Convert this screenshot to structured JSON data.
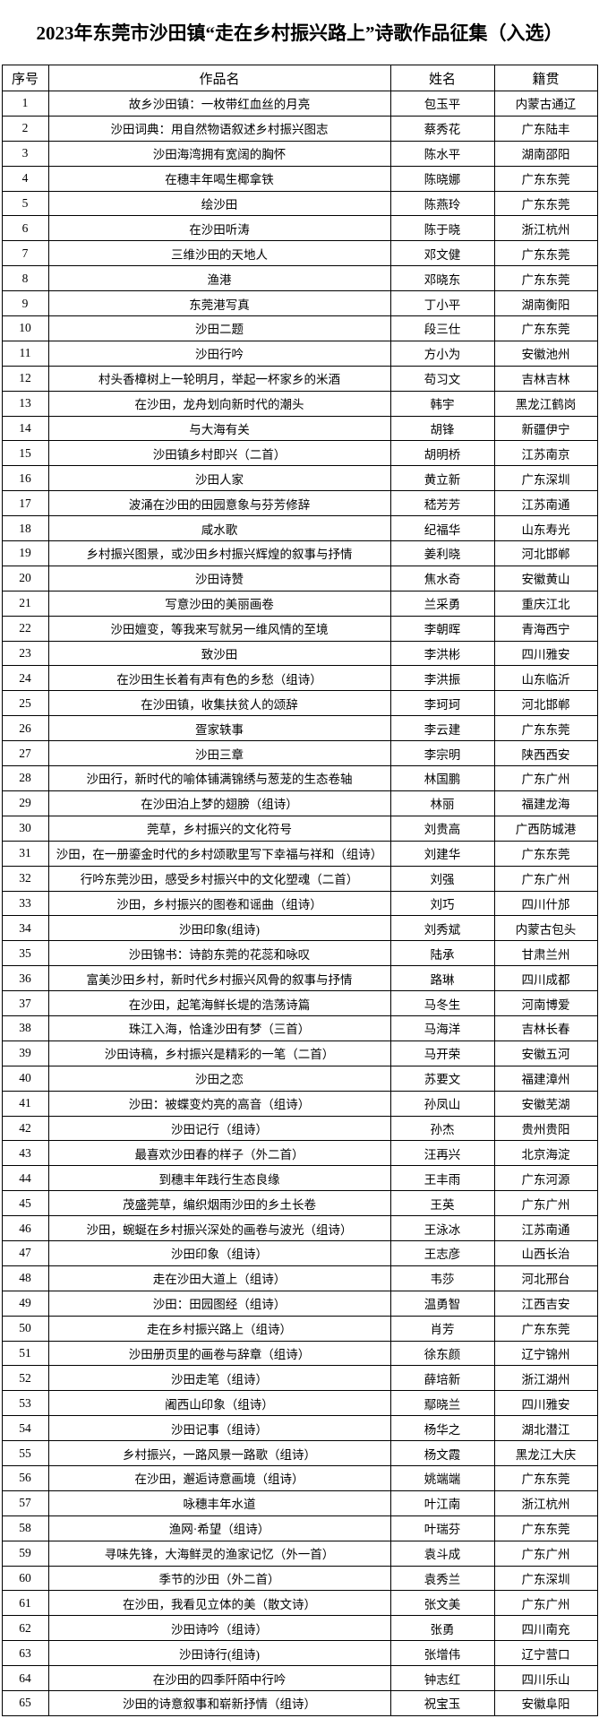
{
  "page": {
    "title": "2023年东莞市沙田镇“走在乡村振兴路上”诗歌作品征集（入选）"
  },
  "table": {
    "headers": [
      "序号",
      "作品名",
      "姓名",
      "籍贯"
    ],
    "rows": [
      {
        "no": "1",
        "title": "故乡沙田镇：一枚带红血丝的月亮",
        "name": "包玉平",
        "origin": "内蒙古通辽"
      },
      {
        "no": "2",
        "title": "沙田词典：用自然物语叙述乡村振兴图志",
        "name": "蔡秀花",
        "origin": "广东陆丰"
      },
      {
        "no": "3",
        "title": "沙田海湾拥有宽阔的胸怀",
        "name": "陈水平",
        "origin": "湖南邵阳"
      },
      {
        "no": "4",
        "title": "在穗丰年喝生椰拿铁",
        "name": "陈晓娜",
        "origin": "广东东莞"
      },
      {
        "no": "5",
        "title": "绘沙田",
        "name": "陈燕玲",
        "origin": "广东东莞"
      },
      {
        "no": "6",
        "title": "在沙田听涛",
        "name": "陈于晓",
        "origin": "浙江杭州"
      },
      {
        "no": "7",
        "title": "三维沙田的天地人",
        "name": "邓文健",
        "origin": "广东东莞"
      },
      {
        "no": "8",
        "title": "渔港",
        "name": "邓晓东",
        "origin": "广东东莞"
      },
      {
        "no": "9",
        "title": "东莞港写真",
        "name": "丁小平",
        "origin": "湖南衡阳"
      },
      {
        "no": "10",
        "title": "沙田二题",
        "name": "段三仕",
        "origin": "广东东莞"
      },
      {
        "no": "11",
        "title": "沙田行吟",
        "name": "方小为",
        "origin": "安徽池州"
      },
      {
        "no": "12",
        "title": "村头香樟树上一轮明月，举起一杯家乡的米酒",
        "name": "苟习文",
        "origin": "吉林吉林"
      },
      {
        "no": "13",
        "title": "在沙田，龙舟划向新时代的潮头",
        "name": "韩宇",
        "origin": "黑龙江鹤岗"
      },
      {
        "no": "14",
        "title": "与大海有关",
        "name": "胡锋",
        "origin": "新疆伊宁"
      },
      {
        "no": "15",
        "title": "沙田镇乡村即兴（二首）",
        "name": "胡明桥",
        "origin": "江苏南京"
      },
      {
        "no": "16",
        "title": "沙田人家",
        "name": "黄立新",
        "origin": "广东深圳"
      },
      {
        "no": "17",
        "title": "波涌在沙田的田园意象与芬芳修辞",
        "name": "嵇芳芳",
        "origin": "江苏南通"
      },
      {
        "no": "18",
        "title": "咸水歌",
        "name": "纪福华",
        "origin": "山东寿光"
      },
      {
        "no": "19",
        "title": "乡村振兴图景，或沙田乡村振兴辉煌的叙事与抒情",
        "name": "姜利晓",
        "origin": "河北邯郸"
      },
      {
        "no": "20",
        "title": "沙田诗赞",
        "name": "焦水奇",
        "origin": "安徽黄山"
      },
      {
        "no": "21",
        "title": "写意沙田的美丽画卷",
        "name": "兰采勇",
        "origin": "重庆江北"
      },
      {
        "no": "22",
        "title": "沙田嬗变，等我来写就另一维风情的至境",
        "name": "李朝晖",
        "origin": "青海西宁"
      },
      {
        "no": "23",
        "title": "致沙田",
        "name": "李洪彬",
        "origin": "四川雅安"
      },
      {
        "no": "24",
        "title": "在沙田生长着有声有色的乡愁（组诗）",
        "name": "李洪振",
        "origin": "山东临沂"
      },
      {
        "no": "25",
        "title": "在沙田镇，收集扶贫人的颂辞",
        "name": "李珂珂",
        "origin": "河北邯郸"
      },
      {
        "no": "26",
        "title": "疍家轶事",
        "name": "李云建",
        "origin": "广东东莞"
      },
      {
        "no": "27",
        "title": "沙田三章",
        "name": "李宗明",
        "origin": "陕西西安"
      },
      {
        "no": "28",
        "title": "沙田行，新时代的喻体铺满锦绣与葱茏的生态卷轴",
        "name": "林国鹏",
        "origin": "广东广州"
      },
      {
        "no": "29",
        "title": "在沙田泊上梦的翅膀（组诗）",
        "name": "林丽",
        "origin": "福建龙海"
      },
      {
        "no": "30",
        "title": "莞草，乡村振兴的文化符号",
        "name": "刘贵高",
        "origin": "广西防城港"
      },
      {
        "no": "31",
        "title": "沙田，在一册鎏金时代的乡村颂歌里写下幸福与祥和（组诗）",
        "name": "刘建华",
        "origin": "广东东莞"
      },
      {
        "no": "32",
        "title": "行吟东莞沙田，感受乡村振兴中的文化塑魂（二首）",
        "name": "刘强",
        "origin": "广东广州"
      },
      {
        "no": "33",
        "title": "沙田，乡村振兴的图卷和谣曲（组诗）",
        "name": "刘巧",
        "origin": "四川什邡"
      },
      {
        "no": "34",
        "title": "沙田印象(组诗)",
        "name": "刘秀斌",
        "origin": "内蒙古包头"
      },
      {
        "no": "35",
        "title": "沙田锦书：诗韵东莞的花蕊和咏叹",
        "name": "陆承",
        "origin": "甘肃兰州"
      },
      {
        "no": "36",
        "title": "富美沙田乡村，新时代乡村振兴风骨的叙事与抒情",
        "name": "路琳",
        "origin": "四川成都"
      },
      {
        "no": "37",
        "title": "在沙田，起笔海鲜长堤的浩荡诗篇",
        "name": "马冬生",
        "origin": "河南博爱"
      },
      {
        "no": "38",
        "title": "珠江入海，恰逢沙田有梦（三首）",
        "name": "马海洋",
        "origin": "吉林长春"
      },
      {
        "no": "39",
        "title": "沙田诗稿，乡村振兴是精彩的一笔（二首）",
        "name": "马开荣",
        "origin": "安徽五河"
      },
      {
        "no": "40",
        "title": "沙田之恋",
        "name": "苏要文",
        "origin": "福建漳州"
      },
      {
        "no": "41",
        "title": "沙田：被蝶变灼亮的高音（组诗）",
        "name": "孙凤山",
        "origin": "安徽芜湖"
      },
      {
        "no": "42",
        "title": "沙田记行（组诗）",
        "name": "孙杰",
        "origin": "贵州贵阳"
      },
      {
        "no": "43",
        "title": "最喜欢沙田春的样子（外二首）",
        "name": "汪再兴",
        "origin": "北京海淀"
      },
      {
        "no": "44",
        "title": "到穗丰年践行生态良缘",
        "name": "王丰雨",
        "origin": "广东河源"
      },
      {
        "no": "45",
        "title": "茂盛莞草，编织烟雨沙田的乡土长卷",
        "name": "王英",
        "origin": "广东广州"
      },
      {
        "no": "46",
        "title": "沙田，蜿蜒在乡村振兴深处的画卷与波光（组诗）",
        "name": "王泳冰",
        "origin": "江苏南通"
      },
      {
        "no": "47",
        "title": "沙田印象（组诗）",
        "name": "王志彦",
        "origin": "山西长治"
      },
      {
        "no": "48",
        "title": "走在沙田大道上（组诗）",
        "name": "韦莎",
        "origin": "河北邢台"
      },
      {
        "no": "49",
        "title": "沙田：田园图经（组诗）",
        "name": "温勇智",
        "origin": "江西吉安"
      },
      {
        "no": "50",
        "title": "走在乡村振兴路上（组诗）",
        "name": "肖芳",
        "origin": "广东东莞"
      },
      {
        "no": "51",
        "title": "沙田册页里的画卷与辞章（组诗）",
        "name": "徐东颜",
        "origin": "辽宁锦州"
      },
      {
        "no": "52",
        "title": "沙田走笔（组诗）",
        "name": "薛培新",
        "origin": "浙江湖州"
      },
      {
        "no": "53",
        "title": "阇西山印象（组诗）",
        "name": "鄢晓兰",
        "origin": "四川雅安"
      },
      {
        "no": "54",
        "title": "沙田记事（组诗）",
        "name": "杨华之",
        "origin": "湖北潜江"
      },
      {
        "no": "55",
        "title": "乡村振兴，一路风景一路歌（组诗）",
        "name": "杨文霞",
        "origin": "黑龙江大庆"
      },
      {
        "no": "56",
        "title": "在沙田，邂逅诗意画境（组诗）",
        "name": "姚端端",
        "origin": "广东东莞"
      },
      {
        "no": "57",
        "title": "咏穗丰年水道",
        "name": "叶江南",
        "origin": "浙江杭州"
      },
      {
        "no": "58",
        "title": "渔网·希望（组诗）",
        "name": "叶瑞芬",
        "origin": "广东东莞"
      },
      {
        "no": "59",
        "title": "寻味先锋，大海鲜灵的渔家记忆（外一首）",
        "name": "袁斗成",
        "origin": "广东广州"
      },
      {
        "no": "60",
        "title": "季节的沙田（外二首）",
        "name": "袁秀兰",
        "origin": "广东深圳"
      },
      {
        "no": "61",
        "title": "在沙田，我看见立体的美（散文诗）",
        "name": "张文美",
        "origin": "广东广州"
      },
      {
        "no": "62",
        "title": "沙田诗吟（组诗）",
        "name": "张勇",
        "origin": "四川南充"
      },
      {
        "no": "63",
        "title": "沙田诗行(组诗)",
        "name": "张增伟",
        "origin": "辽宁营口"
      },
      {
        "no": "64",
        "title": "在沙田的四季阡陌中行吟",
        "name": "钟志红",
        "origin": "四川乐山"
      },
      {
        "no": "65",
        "title": "沙田的诗意叙事和崭新抒情（组诗）",
        "name": "祝宝玉",
        "origin": "安徽阜阳"
      }
    ]
  }
}
